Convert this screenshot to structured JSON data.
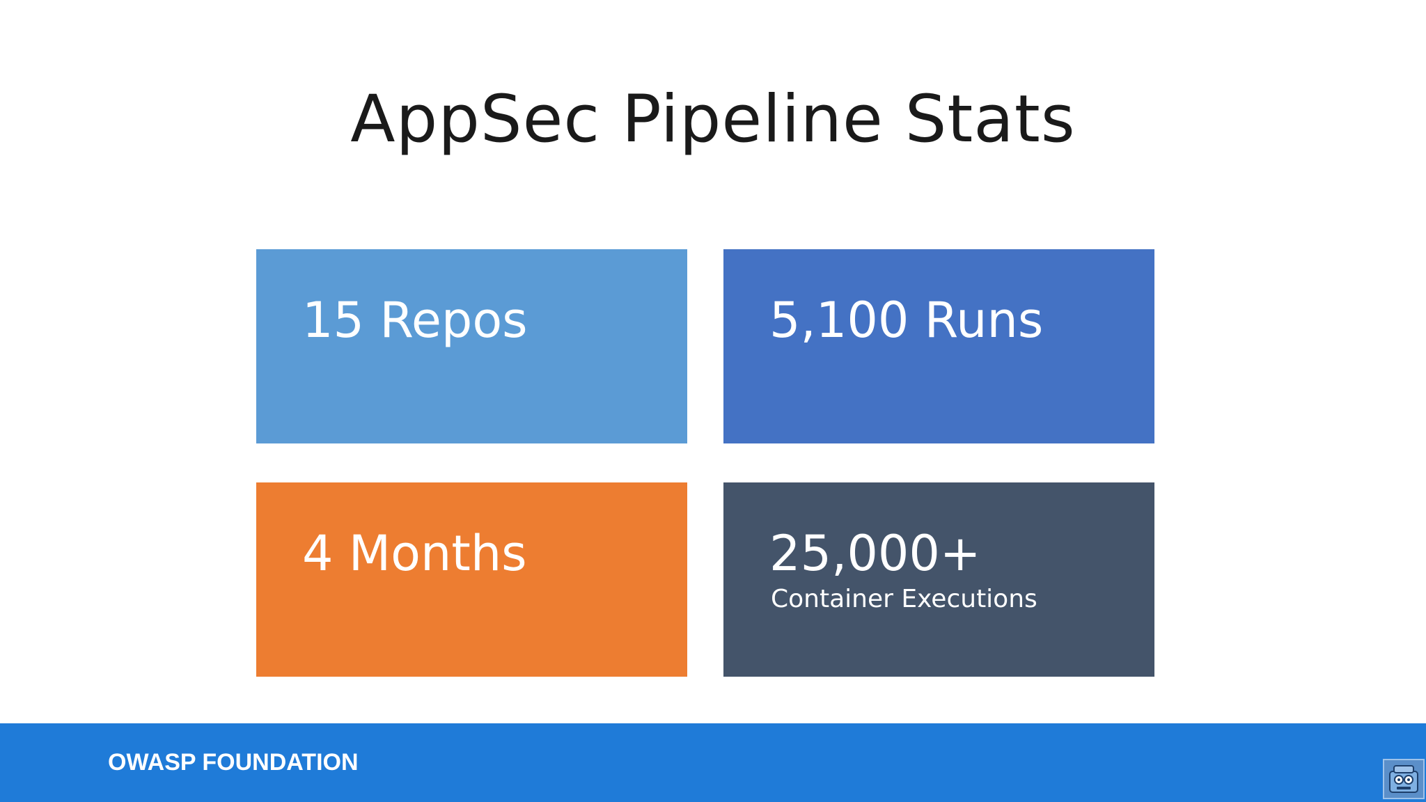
{
  "slide": {
    "title": "AppSec Pipeline Stats"
  },
  "tiles": [
    {
      "primary": "15 Repos",
      "secondary": "",
      "color": "#5b9bd5"
    },
    {
      "primary": "5,100 Runs",
      "secondary": "",
      "color": "#4472c4"
    },
    {
      "primary": "4 Months",
      "secondary": "",
      "color": "#ed7d31"
    },
    {
      "primary": "25,000+",
      "secondary": "Container Executions",
      "color": "#44546a"
    }
  ],
  "footer": {
    "label": "OWASP FOUNDATION",
    "color": "#1f7bd8"
  },
  "icons": {
    "mascot": "owasp-bot-icon"
  }
}
